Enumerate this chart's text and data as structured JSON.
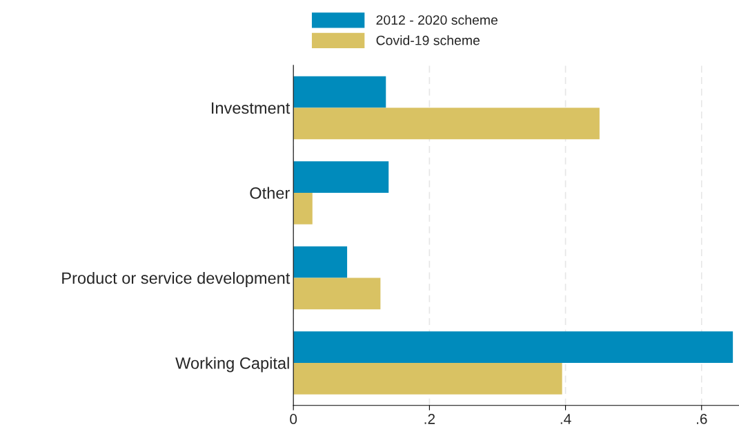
{
  "chart_data": {
    "type": "bar",
    "orientation": "horizontal",
    "categories": [
      "Investment",
      "Other",
      "Product or service development",
      "Working Capital"
    ],
    "series": [
      {
        "name": "2012 - 2020 scheme",
        "color": "#008bbc",
        "values": [
          0.136,
          0.14,
          0.079,
          0.646
        ]
      },
      {
        "name": "Covid-19 scheme",
        "color": "#d9c263",
        "values": [
          0.45,
          0.028,
          0.128,
          0.395
        ]
      }
    ],
    "xlim": [
      0,
      0.655
    ],
    "xticks": [
      0,
      {
        "value": 0.2,
        "label": ".2"
      },
      {
        "value": 0.4,
        "label": ".4"
      },
      {
        "value": 0.6,
        "label": ".6"
      }
    ],
    "grid": "x",
    "legend": "top"
  }
}
